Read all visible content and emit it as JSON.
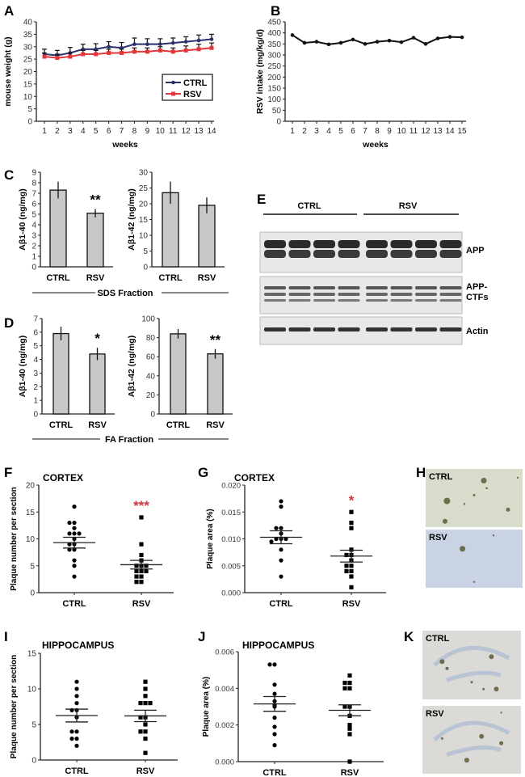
{
  "panels": {
    "A": "A",
    "B": "B",
    "C": "C",
    "D": "D",
    "E": "E",
    "F": "F",
    "G": "G",
    "H": "H",
    "I": "I",
    "J": "J",
    "K": "K"
  },
  "colors": {
    "ctrl": "#2b2f6b",
    "rsv": "#e0383a",
    "significance": "#d2383f",
    "bar_fill": "#c8c8c8"
  },
  "group_labels": {
    "sds_fraction": "SDS Fraction",
    "fa_fraction": "FA Fraction"
  },
  "blot": {
    "headers": [
      "CTRL",
      "RSV"
    ],
    "rows": [
      "APP",
      "APP-\nCTFs",
      "Actin"
    ],
    "lanes_per_group": 4
  },
  "micrographs": {
    "H": {
      "top_label": "CTRL",
      "bottom_label": "RSV"
    },
    "K": {
      "top_label": "CTRL",
      "bottom_label": "RSV"
    }
  },
  "chart_data": [
    {
      "id": "A",
      "type": "line",
      "xlabel": "weeks",
      "ylabel": "mouse weight (g)",
      "ylim": [
        0,
        40
      ],
      "yticks": [
        0,
        5,
        10,
        15,
        20,
        25,
        30,
        35,
        40
      ],
      "x": [
        1,
        2,
        3,
        4,
        5,
        6,
        7,
        8,
        9,
        10,
        11,
        12,
        13,
        14
      ],
      "legend": "right",
      "series": [
        {
          "name": "CTRL",
          "color": "#2b2f6b",
          "marker": "diamond",
          "values": [
            27,
            26.5,
            27.5,
            29,
            29,
            30,
            29.5,
            31,
            31,
            31,
            31.5,
            32,
            32.5,
            33
          ],
          "error": [
            2,
            2,
            2.2,
            2,
            2.2,
            2,
            2.2,
            2.5,
            2.2,
            2.2,
            2,
            2,
            2.2,
            2
          ]
        },
        {
          "name": "RSV",
          "color": "#e0383a",
          "marker": "square",
          "values": [
            26,
            25.5,
            26,
            27,
            27,
            27.5,
            27.5,
            28,
            28,
            28.5,
            28,
            28.5,
            29,
            29.5
          ],
          "error": [
            1.5,
            1.5,
            1.5,
            1.5,
            1.5,
            1.5,
            1.5,
            1.5,
            1.5,
            1.5,
            1.5,
            1.8,
            2,
            2
          ]
        }
      ]
    },
    {
      "id": "B",
      "type": "line",
      "xlabel": "weeks",
      "ylabel": "RSV intake (mg/kg/d)",
      "ylim": [
        0,
        450
      ],
      "yticks": [
        0,
        50,
        100,
        150,
        200,
        250,
        300,
        350,
        400,
        450
      ],
      "x": [
        1,
        2,
        3,
        4,
        5,
        6,
        7,
        8,
        9,
        10,
        11,
        12,
        13,
        14,
        15
      ],
      "series": [
        {
          "values": [
            390,
            355,
            360,
            348,
            355,
            370,
            350,
            360,
            365,
            358,
            378,
            350,
            375,
            382,
            380
          ]
        }
      ]
    },
    {
      "id": "C1",
      "type": "bar",
      "ylabel": "Aβ1-40 (ng/mg)",
      "ylim": [
        0,
        9
      ],
      "yticks": [
        0,
        1,
        2,
        3,
        4,
        5,
        6,
        7,
        8,
        9
      ],
      "categories": [
        "CTRL",
        "RSV"
      ],
      "values": [
        7.3,
        5.1
      ],
      "error": [
        0.8,
        0.4
      ],
      "annotations": [
        "",
        "**"
      ]
    },
    {
      "id": "C2",
      "type": "bar",
      "ylabel": "Aβ1-42 (ng/mg)",
      "ylim": [
        0,
        30
      ],
      "yticks": [
        0,
        5,
        10,
        15,
        20,
        25,
        30
      ],
      "categories": [
        "CTRL",
        "RSV"
      ],
      "values": [
        23.5,
        19.5
      ],
      "error": [
        3.5,
        2.5
      ],
      "annotations": [
        "",
        ""
      ]
    },
    {
      "id": "D1",
      "type": "bar",
      "ylabel": "Aβ1-40 (ng/mg)",
      "ylim": [
        0,
        7
      ],
      "yticks": [
        0,
        1,
        2,
        3,
        4,
        5,
        6,
        7
      ],
      "categories": [
        "CTRL",
        "RSV"
      ],
      "values": [
        5.9,
        4.4
      ],
      "error": [
        0.5,
        0.45
      ],
      "annotations": [
        "",
        "*"
      ]
    },
    {
      "id": "D2",
      "type": "bar",
      "ylabel": "Aβ1-42 (ng/mg)",
      "ylim": [
        0,
        100
      ],
      "yticks": [
        0,
        20,
        40,
        60,
        80,
        100
      ],
      "categories": [
        "CTRL",
        "RSV"
      ],
      "values": [
        84,
        63
      ],
      "error": [
        5,
        5
      ],
      "annotations": [
        "",
        "**"
      ]
    },
    {
      "id": "F",
      "type": "scatter",
      "title": "CORTEX",
      "ylabel": "Plaque number per section",
      "ylim": [
        0,
        20
      ],
      "yticks": [
        "0",
        "5",
        "10",
        "15",
        "20"
      ],
      "categories": [
        "CTRL",
        "RSV"
      ],
      "annotation": "***",
      "groups": [
        {
          "values": [
            16,
            13,
            13,
            12,
            11,
            11,
            11,
            10,
            9,
            9,
            8,
            8,
            6,
            5,
            3
          ],
          "mean": 9.3,
          "sem": 1.0
        },
        {
          "values": [
            14,
            9,
            7,
            6,
            5,
            5,
            5,
            4,
            4,
            4,
            3,
            3,
            2,
            2
          ],
          "mean": 5.2,
          "sem": 0.8
        }
      ]
    },
    {
      "id": "G",
      "type": "scatter",
      "title": "CORTEX",
      "ylabel": "Plaque area (%)",
      "ylim": [
        0,
        0.02
      ],
      "yticks": [
        "0.000",
        "0.005",
        "0.010",
        "0.015",
        "0.020"
      ],
      "categories": [
        "CTRL",
        "RSV"
      ],
      "annotation": "*",
      "groups": [
        {
          "values": [
            0.016,
            0.017,
            0.012,
            0.012,
            0.011,
            0.01,
            0.01,
            0.01,
            0.0095,
            0.008,
            0.006,
            0.003
          ],
          "mean": 0.0103,
          "sem": 0.0012
        },
        {
          "values": [
            0.015,
            0.013,
            0.012,
            0.008,
            0.007,
            0.007,
            0.006,
            0.005,
            0.005,
            0.004,
            0.004,
            0.003,
            0.001
          ],
          "mean": 0.0068,
          "sem": 0.0011
        }
      ]
    },
    {
      "id": "I",
      "type": "scatter",
      "title": "HIPPOCAMPUS",
      "ylabel": "Plaque number per section",
      "ylim": [
        0,
        15
      ],
      "yticks": [
        "0",
        "5",
        "10",
        "15"
      ],
      "categories": [
        "CTRL",
        "RSV"
      ],
      "annotation": "",
      "groups": [
        {
          "values": [
            11,
            10,
            9,
            8,
            7,
            7,
            6,
            4,
            4,
            3,
            3,
            2
          ],
          "mean": 6.25,
          "sem": 0.9
        },
        {
          "values": [
            11,
            10,
            9,
            8,
            8,
            8,
            6,
            6,
            5,
            4,
            4,
            3,
            1
          ],
          "mean": 6.2,
          "sem": 0.8
        }
      ]
    },
    {
      "id": "J",
      "type": "scatter",
      "title": "HIPPOCAMPUS",
      "ylabel": "Plaque area (%)",
      "ylim": [
        0,
        0.006
      ],
      "yticks": [
        "0.000",
        "0.002",
        "0.004",
        "0.006"
      ],
      "categories": [
        "CTRL",
        "RSV"
      ],
      "annotation": "",
      "groups": [
        {
          "values": [
            0.0053,
            0.0053,
            0.0042,
            0.0037,
            0.0033,
            0.0031,
            0.003,
            0.0024,
            0.0019,
            0.0015,
            0.0009
          ],
          "mean": 0.00315,
          "sem": 0.0004
        },
        {
          "values": [
            0.0047,
            0.0043,
            0.0043,
            0.004,
            0.004,
            0.003,
            0.003,
            0.0025,
            0.002,
            0.0018,
            0.0015,
            0.0
          ],
          "mean": 0.0028,
          "sem": 0.0003
        }
      ]
    }
  ]
}
